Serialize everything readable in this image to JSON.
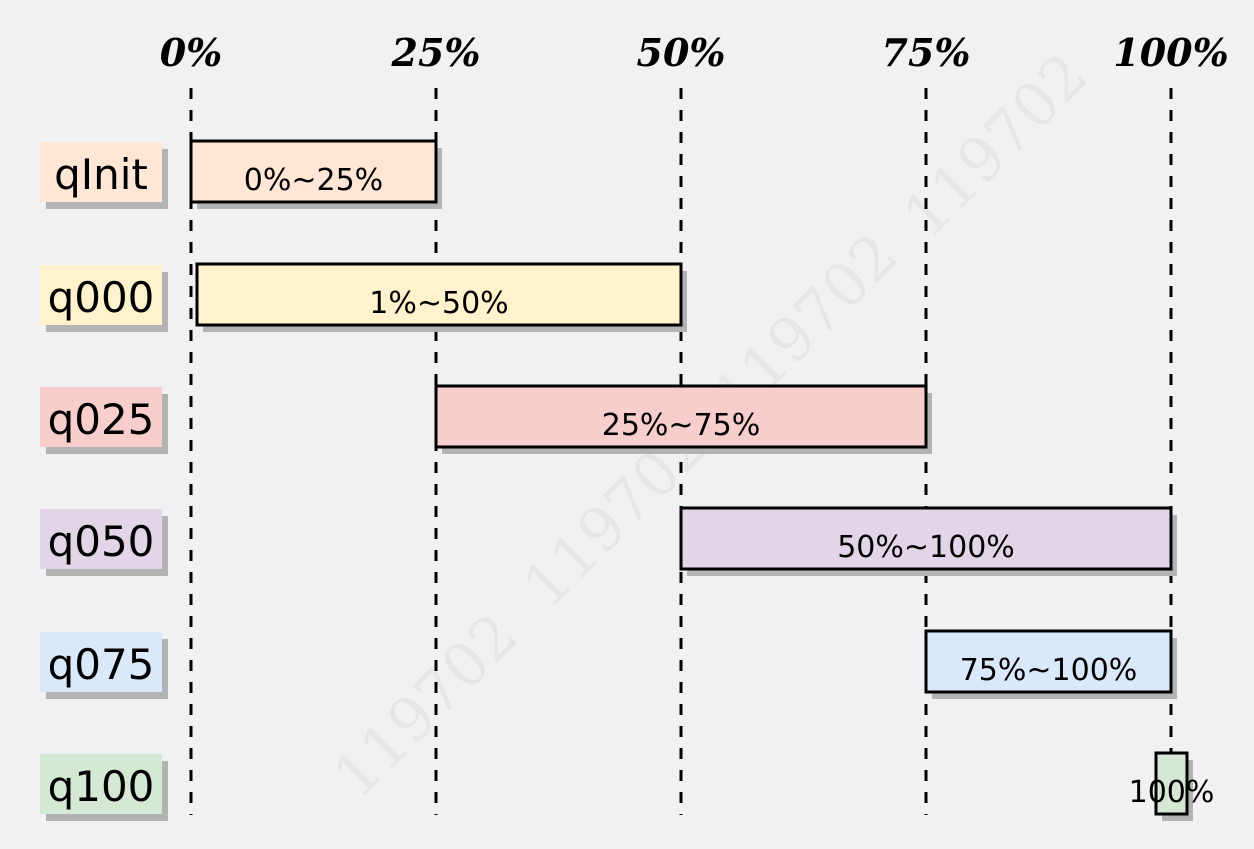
{
  "watermark": "119702",
  "chart_data": {
    "type": "range-bar",
    "axis_ticks": [
      "0%",
      "25%",
      "50%",
      "75%",
      "100%"
    ],
    "tick_values": [
      0,
      25,
      50,
      75,
      100
    ],
    "xlim": [
      0,
      100
    ],
    "grid": "dashed vertical lines at ticks",
    "rows": [
      {
        "name": "qInit",
        "start": 0,
        "end": 25,
        "label": "0%~25%",
        "color": "#ffe6d5"
      },
      {
        "name": "q000",
        "start": 1,
        "end": 50,
        "label": "1%~50%",
        "color": "#fff2cc"
      },
      {
        "name": "q025",
        "start": 25,
        "end": 75,
        "label": "25%~75%",
        "color": "#f8cecc"
      },
      {
        "name": "q050",
        "start": 50,
        "end": 100,
        "label": "50%~100%",
        "color": "#e1d5e7"
      },
      {
        "name": "q075",
        "start": 75,
        "end": 100,
        "label": "75%~100%",
        "color": "#dae8fc"
      },
      {
        "name": "q100",
        "start": 100,
        "end": 100,
        "label": "100%",
        "color": "#d5e8d4"
      }
    ]
  }
}
